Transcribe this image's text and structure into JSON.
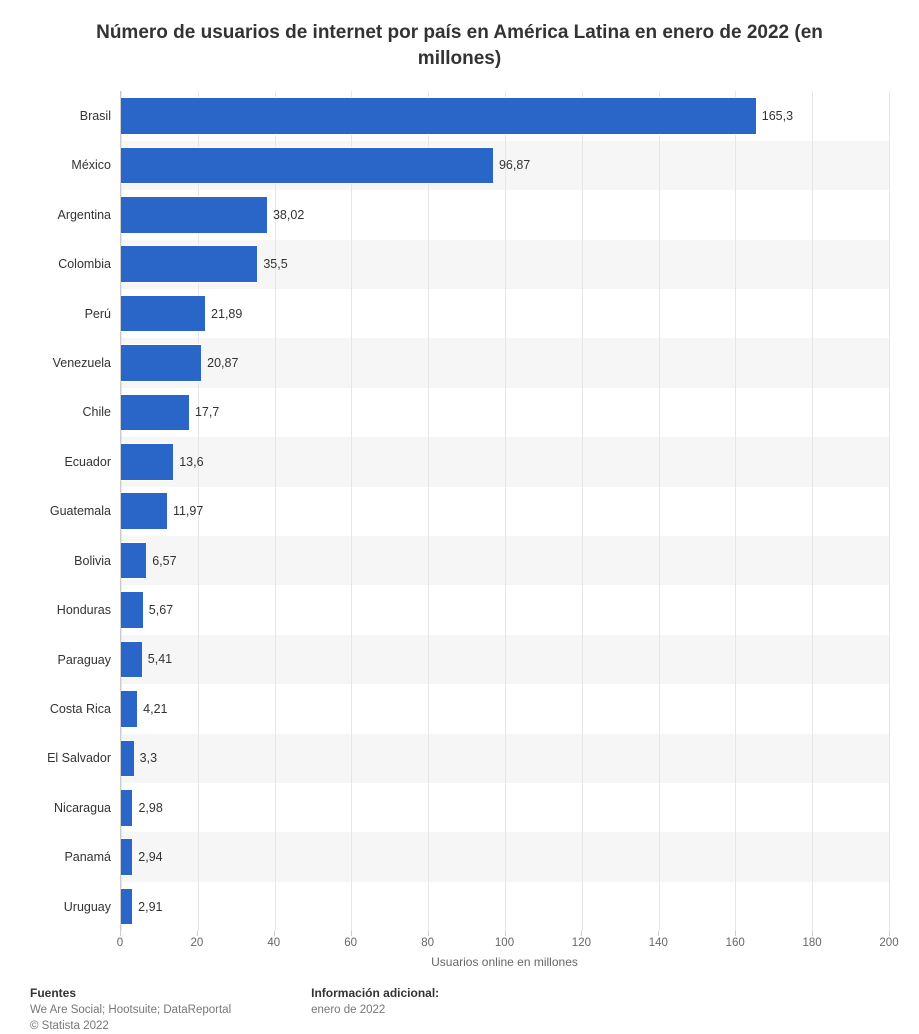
{
  "chart": {
    "type": "bar-horizontal",
    "title": "Número de usuarios de internet por país en América Latina en enero de 2022 (en millones)",
    "xlabel": "Usuarios online en millones",
    "xlim": [
      0,
      200
    ],
    "xtick_step": 20,
    "xticks": [
      0,
      20,
      40,
      60,
      80,
      100,
      120,
      140,
      160,
      180,
      200
    ],
    "bar_color": "#2a66c8",
    "stripe_colors": [
      "#ffffff",
      "#f6f6f6"
    ],
    "grid_color": "#e6e6e6",
    "axis_color": "#cccccc",
    "tick_label_color": "#666666",
    "ylabel_fontsize": 12.5,
    "value_fontsize": 12.5,
    "title_fontsize": 19,
    "categories": [
      "Brasil",
      "México",
      "Argentina",
      "Colombia",
      "Perú",
      "Venezuela",
      "Chile",
      "Ecuador",
      "Guatemala",
      "Bolivia",
      "Honduras",
      "Paraguay",
      "Costa Rica",
      "El Salvador",
      "Nicaragua",
      "Panamá",
      "Uruguay"
    ],
    "values": [
      165.3,
      96.87,
      38.02,
      35.5,
      21.89,
      20.87,
      17.7,
      13.6,
      11.97,
      6.57,
      5.67,
      5.41,
      4.21,
      3.3,
      2.98,
      2.94,
      2.91
    ],
    "value_labels": [
      "165,3",
      "96,87",
      "38,02",
      "35,5",
      "21,89",
      "20,87",
      "17,7",
      "13,6",
      "11,97",
      "6,57",
      "5,67",
      "5,41",
      "4,21",
      "3,3",
      "2,98",
      "2,94",
      "2,91"
    ]
  },
  "footer": {
    "sources_heading": "Fuentes",
    "sources_line": "We Are Social; Hootsuite; DataReportal",
    "copyright": "© Statista 2022",
    "info_heading": "Información adicional:",
    "info_line": "enero de 2022"
  }
}
